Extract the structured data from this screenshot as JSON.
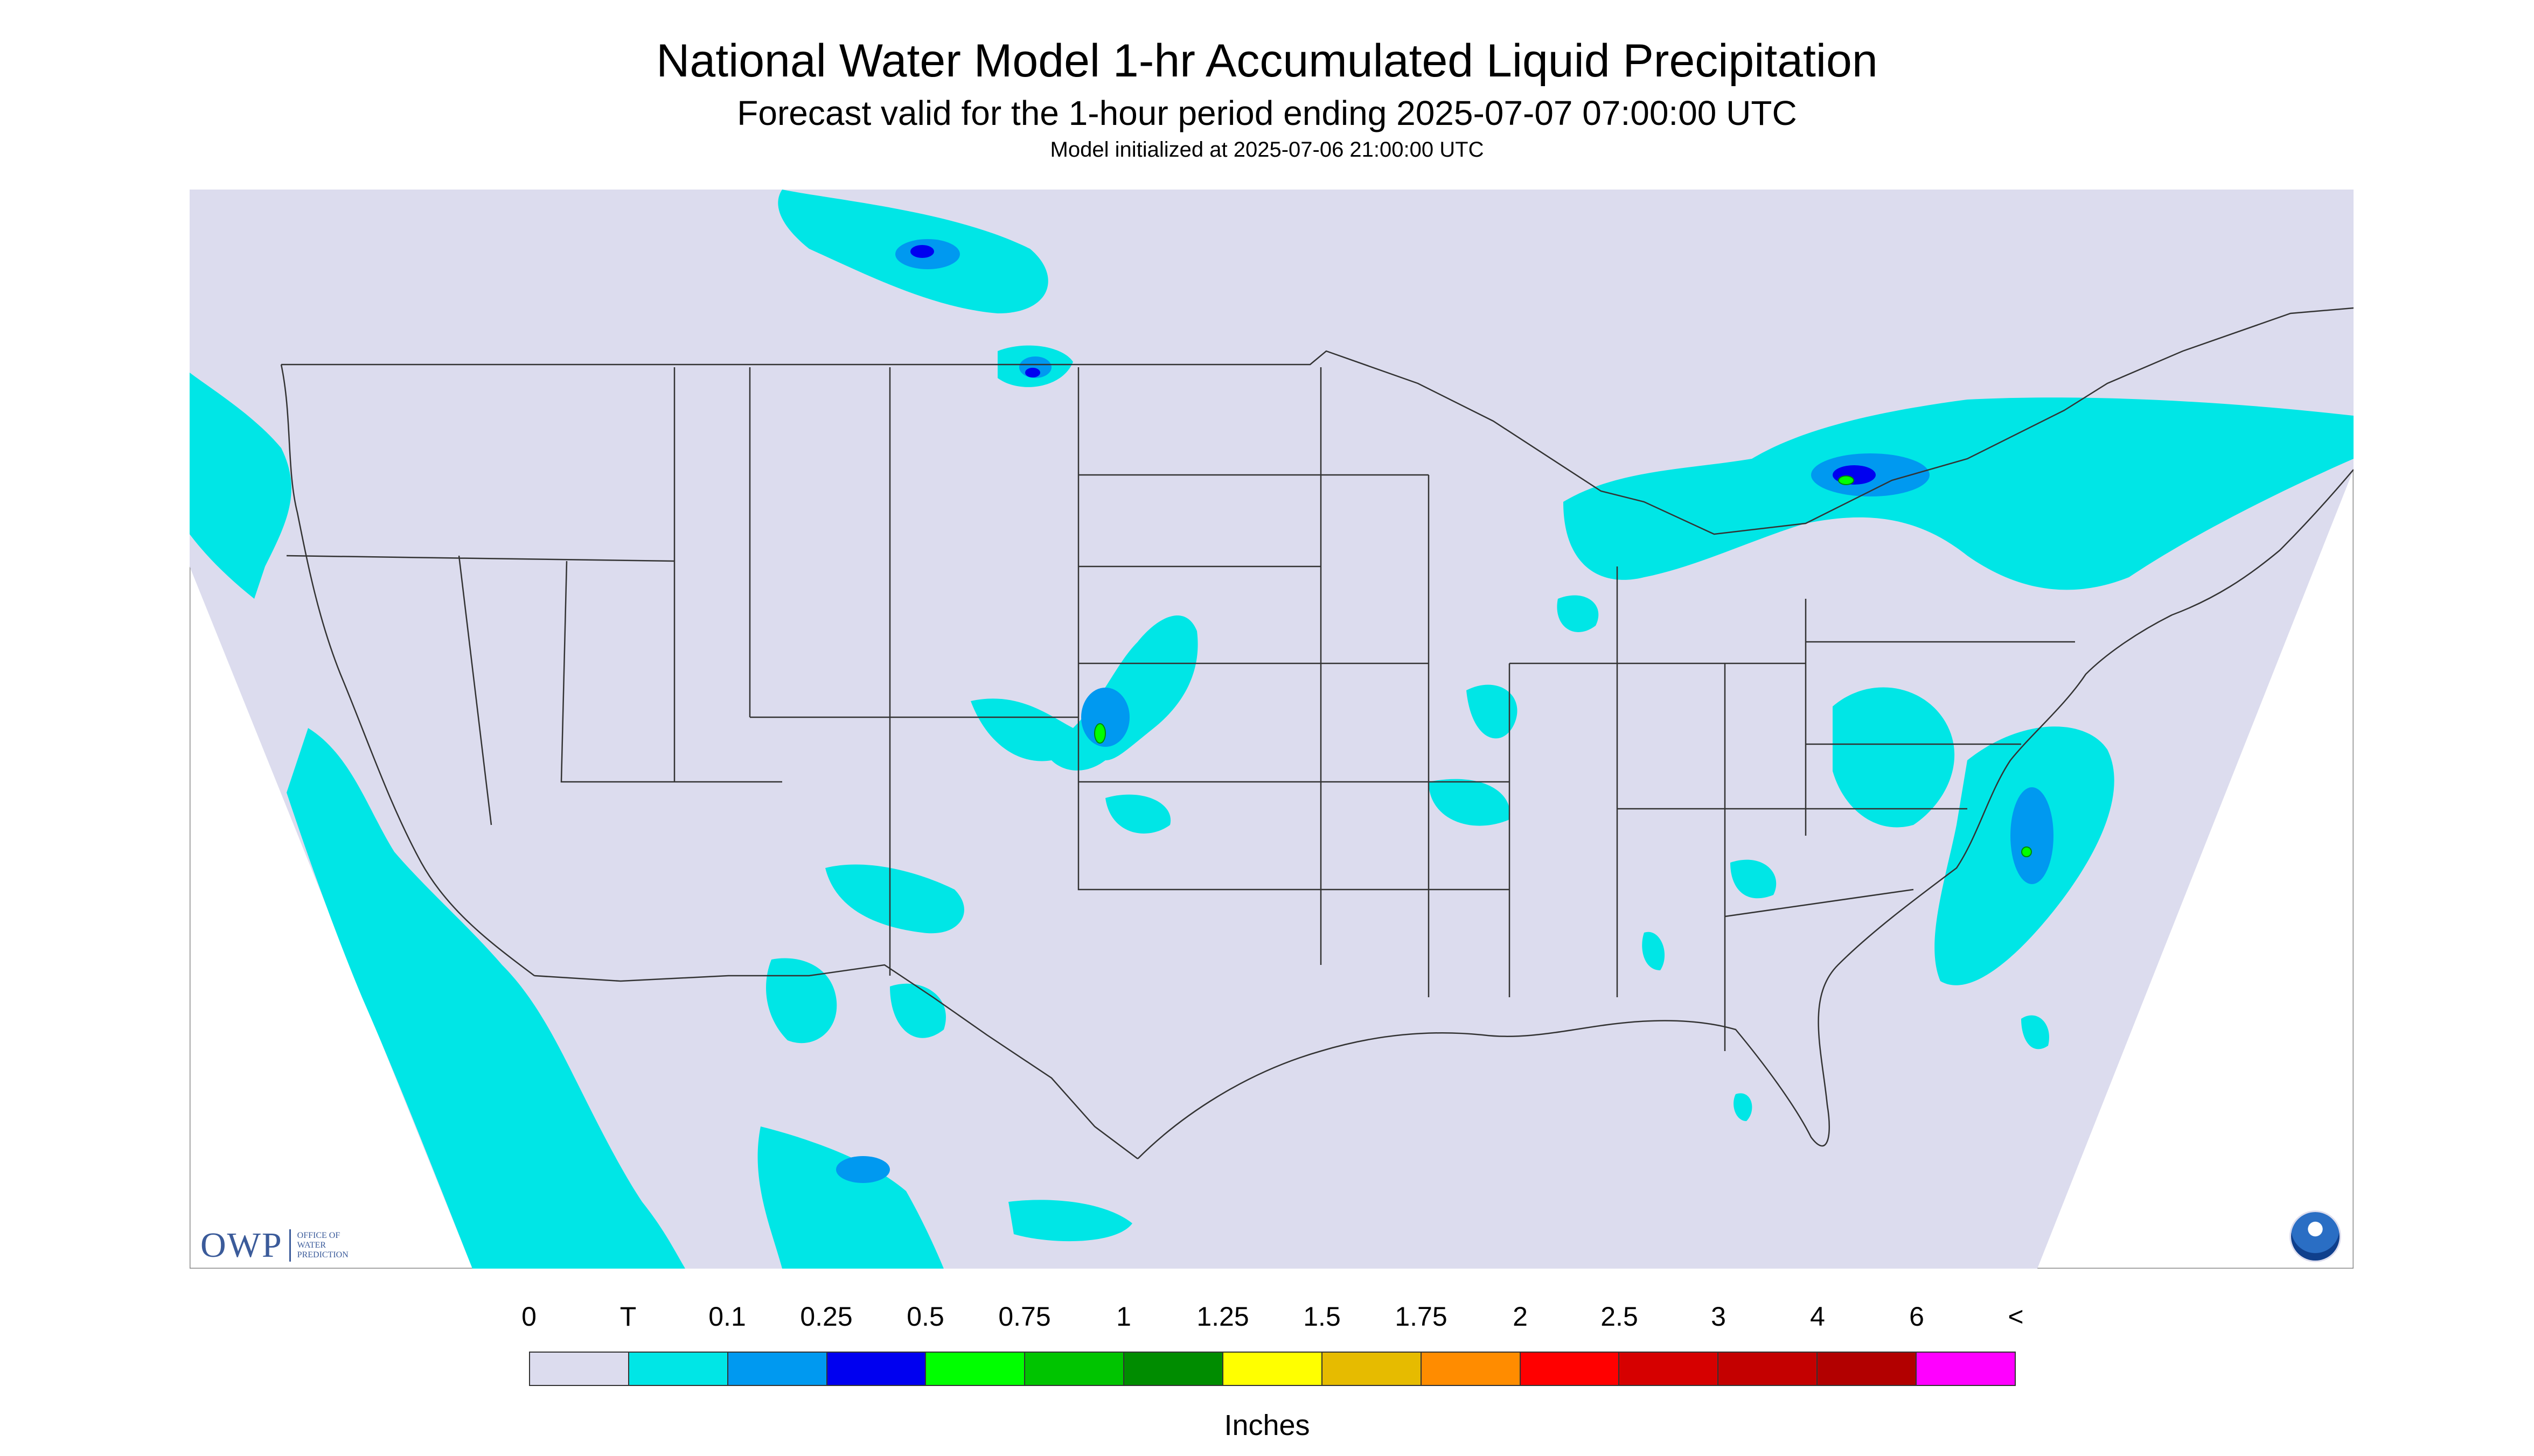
{
  "title": "National Water Model 1-hr Accumulated Liquid Precipitation",
  "subtitle": "Forecast valid for the 1-hour period ending 2025-07-07 07:00:00 UTC",
  "init_text": "Model initialized at 2025-07-06 21:00:00 UTC",
  "colors": {
    "map_background": "#dcdcee",
    "light_precip": "#00e6e6",
    "border_lines": "#333333"
  },
  "legend": {
    "labels": [
      "0",
      "T",
      "0.1",
      "0.25",
      "0.5",
      "0.75",
      "1",
      "1.25",
      "1.5",
      "1.75",
      "2",
      "2.5",
      "3",
      "4",
      "6",
      "<"
    ],
    "colors": [
      "#dcdcee",
      "#00e6e6",
      "#0099f0",
      "#0000f0",
      "#00ff00",
      "#00c400",
      "#008c00",
      "#ffff00",
      "#e6bb00",
      "#ff8c00",
      "#ff0000",
      "#d60000",
      "#c40000",
      "#b20000",
      "#ff00ff",
      "#9955cc"
    ],
    "units": "Inches"
  },
  "logos": {
    "owp_main": "OWP",
    "owp_sub": [
      "OFFICE OF",
      "WATER",
      "PREDICTION"
    ],
    "noaa_icon": "noaa-logo-icon"
  }
}
